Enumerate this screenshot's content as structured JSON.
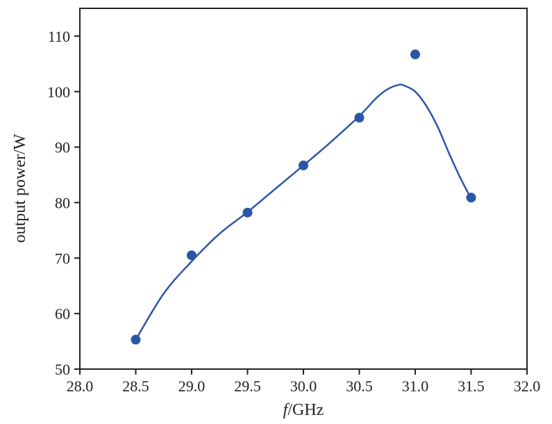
{
  "chart_data": {
    "type": "scatter",
    "xlabel_italic": "f",
    "xlabel_rest": "/GHz",
    "ylabel": "output power/W",
    "xlim": [
      28.0,
      32.0
    ],
    "ylim": [
      50,
      115
    ],
    "xticks": [
      "28.0",
      "28.5",
      "29.0",
      "29.5",
      "30.0",
      "30.5",
      "31.0",
      "31.5",
      "32.0"
    ],
    "yticks": [
      "50",
      "60",
      "70",
      "80",
      "90",
      "100",
      "110"
    ],
    "grid": false,
    "legend": "none",
    "series": [
      {
        "x": [
          28.5,
          29.0,
          29.5,
          30.0,
          30.5,
          31.0,
          31.5
        ],
        "y": [
          55.3,
          70.5,
          78.2,
          86.7,
          95.3,
          106.7,
          80.9
        ],
        "marker": "circle",
        "color": "#2a56a8"
      }
    ],
    "fit_curve": {
      "x": [
        28.5,
        28.75,
        29.0,
        29.25,
        29.5,
        29.75,
        30.0,
        30.25,
        30.5,
        30.65,
        30.75,
        30.85,
        30.9,
        31.0,
        31.1,
        31.2,
        31.3,
        31.4,
        31.5
      ],
      "y": [
        55.3,
        63.6,
        69.4,
        74.4,
        78.3,
        82.5,
        86.7,
        91.0,
        95.6,
        98.8,
        100.4,
        101.2,
        101.1,
        100.0,
        97.4,
        93.7,
        89.0,
        84.6,
        80.7
      ],
      "color": "#2a56a8"
    }
  }
}
